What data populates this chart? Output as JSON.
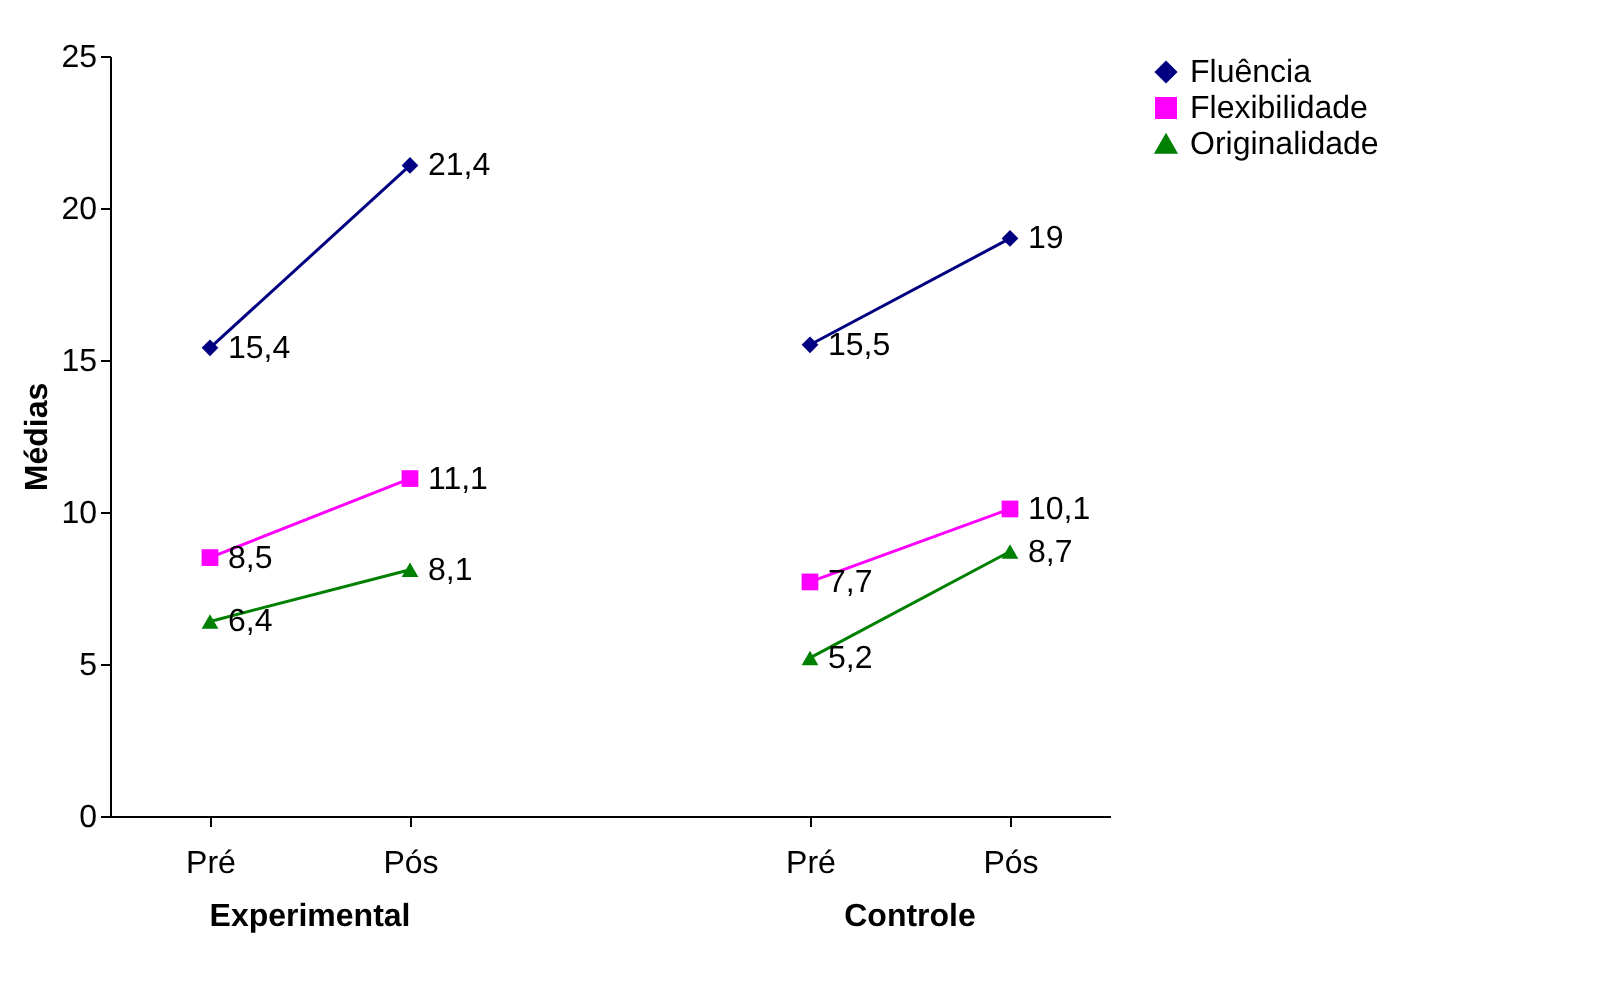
{
  "chart_data": {
    "type": "line",
    "ylabel": "Médias",
    "categories": [
      "Pré",
      "Pós",
      null,
      "Pré",
      "Pós"
    ],
    "series": [
      {
        "name": "Fluência",
        "color": "#000080",
        "marker": "diamond",
        "values": [
          15.4,
          21.4,
          null,
          15.5,
          19
        ],
        "value_labels": [
          "15,4",
          "21,4",
          null,
          "15,5",
          "19"
        ]
      },
      {
        "name": "Flexibilidade",
        "color": "#ff00ff",
        "marker": "square",
        "values": [
          8.5,
          11.1,
          null,
          7.7,
          10.1
        ],
        "value_labels": [
          "8,5",
          "11,1",
          null,
          "7,7",
          "10,1"
        ]
      },
      {
        "name": "Originalidade",
        "color": "#008000",
        "marker": "triangle",
        "values": [
          6.4,
          8.1,
          null,
          5.2,
          8.7
        ],
        "value_labels": [
          "6,4",
          "8,1",
          null,
          "5,2",
          "8,7"
        ]
      }
    ],
    "annotations": [
      "Experimental",
      "Controle"
    ],
    "ylim": [
      0,
      25
    ],
    "yticks": [
      0,
      5,
      10,
      15,
      20,
      25
    ],
    "grid": false,
    "legend": "top right"
  }
}
